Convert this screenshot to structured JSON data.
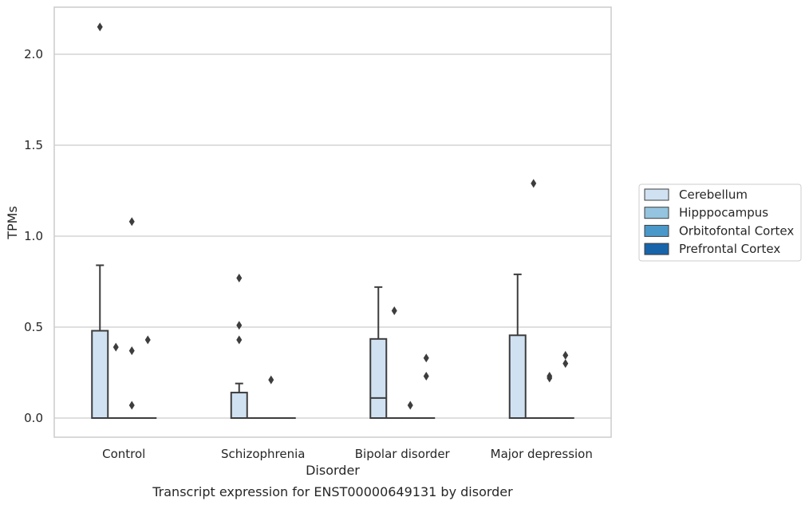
{
  "caption": "Transcript expression for ENST00000649131 by disorder",
  "chart_data": {
    "type": "box",
    "title": "",
    "xlabel": "Disorder",
    "ylabel": "TPMs",
    "ylim": [
      -0.105,
      2.265
    ],
    "yticks": [
      0.0,
      0.5,
      1.0,
      1.5,
      2.0
    ],
    "ytick_labels": [
      "0.0",
      "0.5",
      "1.0",
      "1.5",
      "2.0"
    ],
    "grid": "y",
    "legend_position": "right",
    "categories": [
      "Control",
      "Schizophrenia",
      "Bipolar disorder",
      "Major depression"
    ],
    "series": [
      {
        "name": "Cerebellum",
        "color": "#d0e1f2",
        "boxes": [
          {
            "q1": 0,
            "median": 0,
            "q3": 0.48,
            "whisker_low": 0,
            "whisker_high": 0.84,
            "outliers": [
              2.15
            ]
          },
          {
            "q1": 0,
            "median": 0,
            "q3": 0.14,
            "whisker_low": 0,
            "whisker_high": 0.19,
            "outliers": [
              0.43,
              0.51,
              0.77
            ]
          },
          {
            "q1": 0,
            "median": 0.11,
            "q3": 0.435,
            "whisker_low": 0,
            "whisker_high": 0.72,
            "outliers": []
          },
          {
            "q1": 0,
            "median": 0,
            "q3": 0.455,
            "whisker_low": 0,
            "whisker_high": 0.79,
            "outliers": []
          }
        ]
      },
      {
        "name": "Hipppocampus",
        "color": "#94c4df",
        "boxes": [
          {
            "q1": 0,
            "median": 0,
            "q3": 0,
            "whisker_low": 0,
            "whisker_high": 0,
            "outliers": [
              0.39
            ]
          },
          {
            "q1": 0,
            "median": 0,
            "q3": 0,
            "whisker_low": 0,
            "whisker_high": 0,
            "outliers": []
          },
          {
            "q1": 0,
            "median": 0,
            "q3": 0,
            "whisker_low": 0,
            "whisker_high": 0,
            "outliers": [
              0.59
            ]
          },
          {
            "q1": 0,
            "median": 0,
            "q3": 0,
            "whisker_low": 0,
            "whisker_high": 0,
            "outliers": [
              1.29
            ]
          }
        ]
      },
      {
        "name": "Orbitofontal Cortex",
        "color": "#4a98c9",
        "boxes": [
          {
            "q1": 0,
            "median": 0,
            "q3": 0,
            "whisker_low": 0,
            "whisker_high": 0,
            "outliers": [
              0.07,
              0.37,
              1.08
            ]
          },
          {
            "q1": 0,
            "median": 0,
            "q3": 0,
            "whisker_low": 0,
            "whisker_high": 0,
            "outliers": [
              0.21
            ]
          },
          {
            "q1": 0,
            "median": 0,
            "q3": 0,
            "whisker_low": 0,
            "whisker_high": 0,
            "outliers": [
              0.07
            ]
          },
          {
            "q1": 0,
            "median": 0,
            "q3": 0,
            "whisker_low": 0,
            "whisker_high": 0,
            "outliers": [
              0.22,
              0.23
            ]
          }
        ]
      },
      {
        "name": "Prefrontal Cortex",
        "color": "#1764ab",
        "boxes": [
          {
            "q1": 0,
            "median": 0,
            "q3": 0,
            "whisker_low": 0,
            "whisker_high": 0,
            "outliers": [
              0.43
            ]
          },
          {
            "q1": 0,
            "median": 0,
            "q3": 0,
            "whisker_low": 0,
            "whisker_high": 0,
            "outliers": []
          },
          {
            "q1": 0,
            "median": 0,
            "q3": 0,
            "whisker_low": 0,
            "whisker_high": 0,
            "outliers": [
              0.23,
              0.33
            ]
          },
          {
            "q1": 0,
            "median": 0,
            "q3": 0,
            "whisker_low": 0,
            "whisker_high": 0,
            "outliers": [
              0.3,
              0.345
            ]
          }
        ]
      }
    ]
  }
}
